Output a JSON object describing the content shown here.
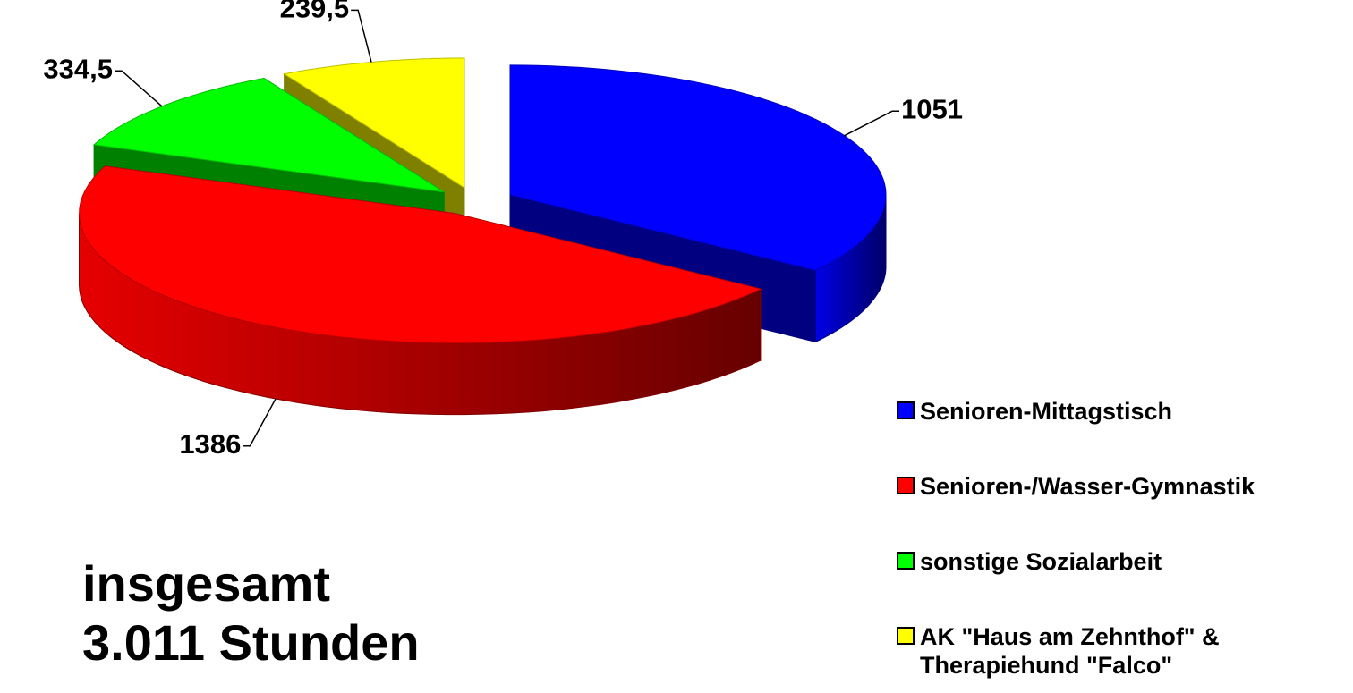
{
  "chart_data": {
    "type": "pie3d",
    "categories": [
      "Senioren-Mittagstisch",
      "Senioren-/Wasser-Gymnastik",
      "sonstige Sozialarbeit",
      "AK \"Haus am Zehnthof\" & Therapiehund \"Falco\""
    ],
    "values": [
      1051,
      1386,
      334.5,
      239.5
    ],
    "value_labels": [
      "1051",
      "1386",
      "334,5",
      "239,5"
    ],
    "colors": [
      "#0000ff",
      "#ff0000",
      "#00ff00",
      "#ffff00"
    ],
    "annotation": [
      "insgesamt",
      "3.011 Stunden"
    ],
    "legend": "right"
  }
}
